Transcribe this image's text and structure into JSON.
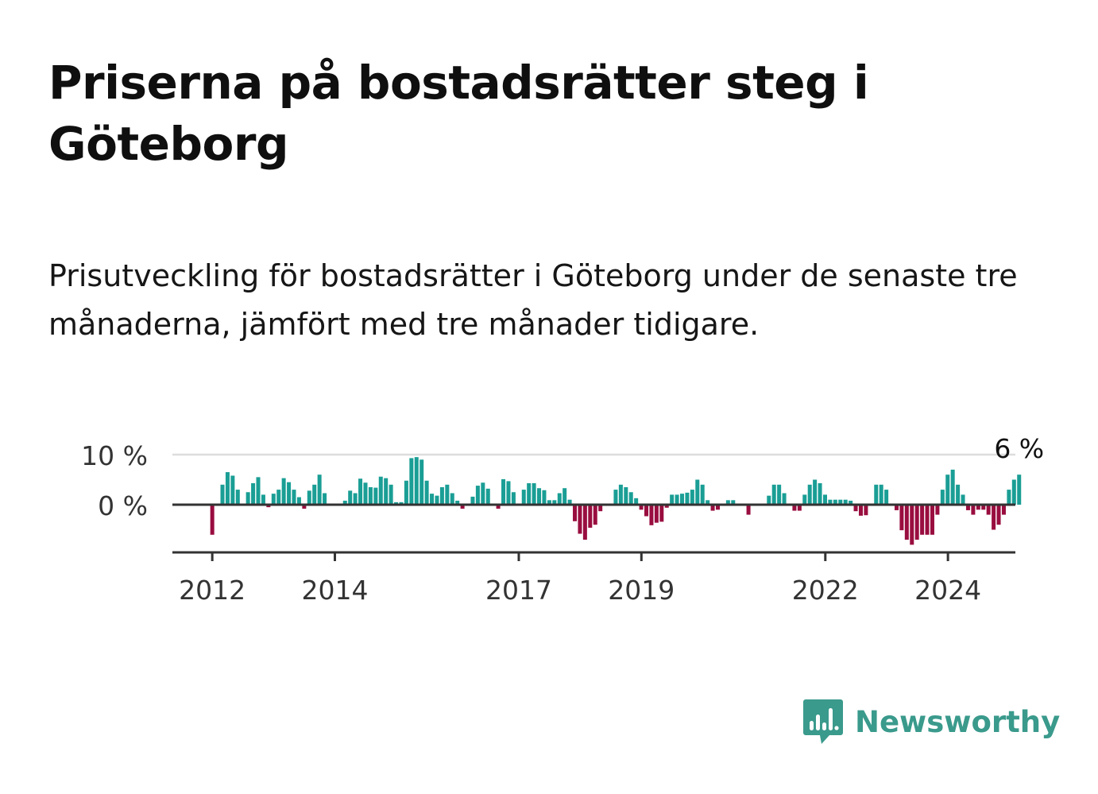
{
  "title": "Priserna på bostadsrätter steg i Göteborg",
  "subtitle": "Prisutveckling för bostadsrätter i Göteborg under de senaste tre månaderna, jämfört med tre månader tidigare.",
  "brand": "Newsworthy",
  "colors": {
    "positive": "#1a9e95",
    "negative": "#990d3f",
    "accent": "#3a9a8c",
    "axis": "#333333",
    "grid": "#dddddd"
  },
  "chart_data": {
    "type": "bar",
    "title": "Prisutveckling för bostadsrätter i Göteborg",
    "x_start": 2012.0,
    "step": 0.0833,
    "values": [
      -6,
      0,
      4,
      6.5,
      5.8,
      3,
      0,
      2.5,
      4.3,
      5.5,
      2,
      -0.5,
      2.2,
      3,
      5.3,
      4.5,
      3,
      1.5,
      -0.8,
      2.8,
      4,
      6,
      2.3,
      0,
      0,
      0,
      0.8,
      2.8,
      2.3,
      5.2,
      4.4,
      3.5,
      3.4,
      5.6,
      5.3,
      4,
      0.5,
      0.5,
      4.8,
      9.3,
      9.5,
      9,
      4.8,
      2.2,
      1.8,
      3.5,
      4,
      2.3,
      0.8,
      -0.8,
      0,
      1.6,
      3.8,
      4.4,
      3.2,
      0,
      -0.8,
      5.1,
      4.7,
      2.5,
      0,
      3,
      4.3,
      4.3,
      3.3,
      2.9,
      0.9,
      0.9,
      2.3,
      3.3,
      1,
      -3.3,
      -5.8,
      -7,
      -4.6,
      -4,
      -1.3,
      0,
      0,
      3,
      4,
      3.5,
      2.5,
      1.3,
      -1,
      -2.3,
      -4.1,
      -3.6,
      -3.4,
      -0.6,
      2,
      2,
      2.2,
      2.4,
      3,
      5,
      4,
      0.9,
      -1.2,
      -1,
      0,
      0.9,
      0.9,
      0,
      0,
      -2,
      0,
      0,
      0,
      1.8,
      4,
      4,
      2.3,
      0,
      -1.2,
      -1.2,
      2,
      4,
      5,
      4.3,
      2,
      1,
      1,
      1,
      1,
      0.8,
      -1.3,
      -2.2,
      -2.1,
      0,
      4,
      4,
      3,
      0,
      -1.1,
      -5.1,
      -7,
      -8,
      -7,
      -6,
      -6,
      -6,
      -2,
      3,
      6,
      7,
      4,
      2,
      -1.1,
      -2,
      -1,
      -1,
      -2,
      -5,
      -4,
      -2,
      3,
      5,
      6
    ],
    "y_ticks": [
      0,
      10
    ],
    "y_tick_labels": [
      "0 %",
      "10 %"
    ],
    "ylim": [
      -9,
      11
    ],
    "x_ticks": [
      2012,
      2014,
      2017,
      2019,
      2022,
      2024
    ],
    "x_tick_labels": [
      "2012",
      "2014",
      "2017",
      "2019",
      "2022",
      "2024"
    ],
    "xlim": [
      2011.35,
      2025.1
    ],
    "last_label": "6 %"
  }
}
